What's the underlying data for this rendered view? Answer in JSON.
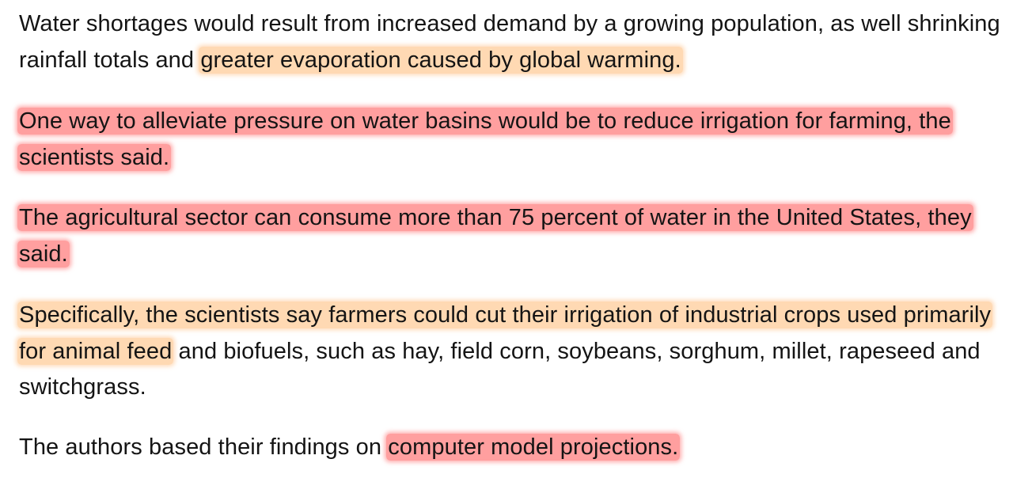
{
  "colors": {
    "highlight_orange": "#ffd9b3",
    "highlight_red": "#ff9f9f",
    "text": "#141414",
    "background": "#ffffff"
  },
  "article": {
    "p1": {
      "plain": "Water shortages would result from increased demand by a growing population, as well shrinking rainfall totals and ",
      "highlight": "greater evaporation caused by global warming."
    },
    "p2": {
      "highlight": "One way to alleviate pressure on water basins would be to reduce irrigation for farming, the scientists said."
    },
    "p3": {
      "highlight": "The agricultural sector can consume more than 75 percent of water in the United States, they said."
    },
    "p4": {
      "highlight": "Specifically, the scientists say farmers could cut their irrigation of industrial crops used primarily for animal feed",
      "plain": " and biofuels, such as hay, field corn, soybeans, sorghum, millet, rapeseed and switchgrass."
    },
    "p5": {
      "plain": "The authors based their findings on ",
      "highlight": "computer model projections."
    }
  }
}
